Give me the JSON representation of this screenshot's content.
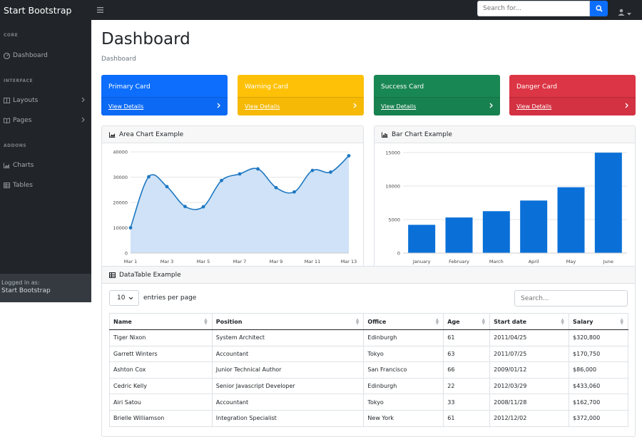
{
  "topbar": {
    "brand": "Start Bootstrap",
    "search_placeholder": "Search for...",
    "colors": {
      "bar": "#212529",
      "accent": "#0d6efd"
    }
  },
  "sidebar": {
    "headings": [
      "CORE",
      "INTERFACE",
      "ADDONS"
    ],
    "items": [
      {
        "label": "Dashboard",
        "icon": "tachometer-icon"
      },
      {
        "label": "Layouts",
        "icon": "columns-icon"
      },
      {
        "label": "Pages",
        "icon": "book-icon"
      },
      {
        "label": "Charts",
        "icon": "chart-area-icon"
      },
      {
        "label": "Tables",
        "icon": "table-icon"
      }
    ],
    "footer": {
      "label": "Logged in as:",
      "name": "Start Bootstrap"
    }
  },
  "main": {
    "title": "Dashboard",
    "breadcrumb": "Dashboard",
    "cards": [
      {
        "title": "Primary Card",
        "link": "View Details",
        "color": "#0d6efd"
      },
      {
        "title": "Warning Card",
        "link": "View Details",
        "color": "#ffc107"
      },
      {
        "title": "Success Card",
        "link": "View Details",
        "color": "#198754"
      },
      {
        "title": "Danger Card",
        "link": "View Details",
        "color": "#dc3545"
      }
    ],
    "area_title": "Area Chart Example",
    "bar_title": "Bar Chart Example",
    "table_title": "DataTable Example",
    "datatable": {
      "per_page": "10",
      "entries_label": "entries per page",
      "search_placeholder": "Search...",
      "headers": [
        "Name",
        "Position",
        "Office",
        "Age",
        "Start date",
        "Salary"
      ],
      "rows": [
        [
          "Tiger Nixon",
          "System Architect",
          "Edinburgh",
          "61",
          "2011/04/25",
          "$320,800"
        ],
        [
          "Garrett Winters",
          "Accountant",
          "Tokyo",
          "63",
          "2011/07/25",
          "$170,750"
        ],
        [
          "Ashton Cox",
          "Junior Technical Author",
          "San Francisco",
          "66",
          "2009/01/12",
          "$86,000"
        ],
        [
          "Cedric Kelly",
          "Senior Javascript Developer",
          "Edinburgh",
          "22",
          "2012/03/29",
          "$433,060"
        ],
        [
          "Airi Satou",
          "Accountant",
          "Tokyo",
          "33",
          "2008/11/28",
          "$162,700"
        ],
        [
          "Brielle Williamson",
          "Integration Specialist",
          "New York",
          "61",
          "2012/12/02",
          "$372,000"
        ]
      ]
    }
  },
  "chart_data": [
    {
      "type": "area",
      "title": "Area Chart Example",
      "x": [
        "Mar 1",
        "Mar 2",
        "Mar 3",
        "Mar 4",
        "Mar 5",
        "Mar 6",
        "Mar 7",
        "Mar 8",
        "Mar 9",
        "Mar 10",
        "Mar 11",
        "Mar 12",
        "Mar 13"
      ],
      "x_tick_labels": [
        "Mar 1",
        "Mar 3",
        "Mar 5",
        "Mar 7",
        "Mar 9",
        "Mar 11",
        "Mar 13"
      ],
      "values": [
        10000,
        30162,
        26263,
        18394,
        18287,
        28682,
        31274,
        33259,
        25849,
        24159,
        32651,
        31984,
        38451
      ],
      "ylim": [
        0,
        40000
      ],
      "y_ticks": [
        "0",
        "10000",
        "20000",
        "30000",
        "40000"
      ],
      "color": "#0d6efd",
      "fill": "#cfe2f7"
    },
    {
      "type": "bar",
      "title": "Bar Chart Example",
      "categories": [
        "January",
        "February",
        "March",
        "April",
        "May",
        "June"
      ],
      "values": [
        4215,
        5312,
        6251,
        7841,
        9821,
        14984
      ],
      "ylim": [
        0,
        15000
      ],
      "y_ticks": [
        "0",
        "5000",
        "10000",
        "15000"
      ],
      "color": "#0d6efd"
    }
  ]
}
